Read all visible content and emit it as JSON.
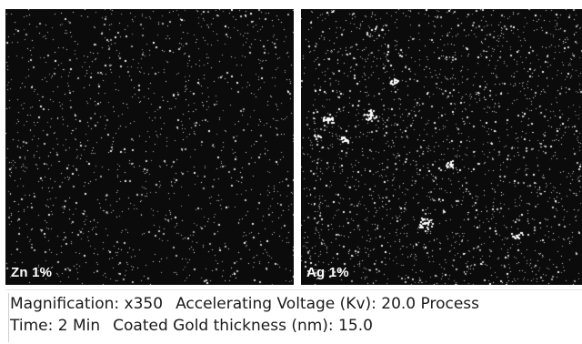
{
  "panels": [
    {
      "label": "Zn 1%",
      "element": "Zn",
      "percent": 1
    },
    {
      "label": "Ag 1%",
      "element": "Ag",
      "percent": 1
    }
  ],
  "caption": {
    "magnification": "Magnification: x350",
    "voltage": "Accelerating Voltage (Kv): 20.0 Process",
    "time": "Time: 2 Min",
    "gold": "Coated Gold thickness (nm): 15.0"
  },
  "colors": {
    "background": "#0b0b0b",
    "dots": "#ffffff",
    "caption_text": "#1a1a1a"
  }
}
